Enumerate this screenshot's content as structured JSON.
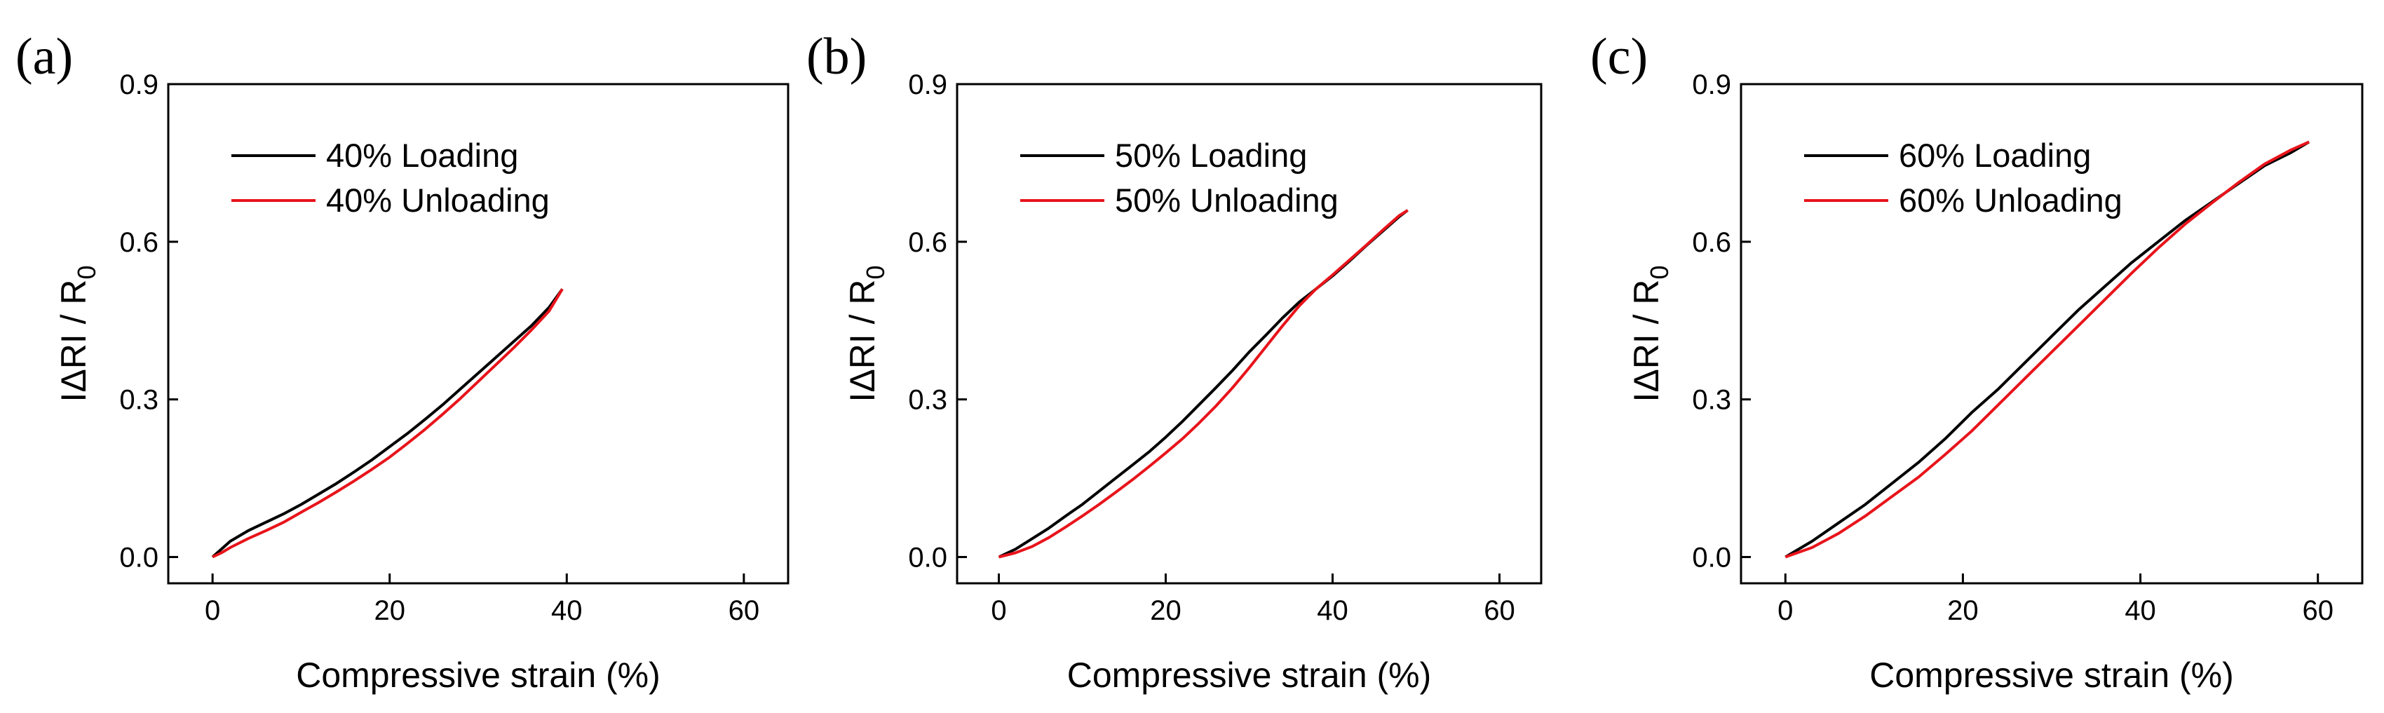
{
  "colors": {
    "loading": "#000000",
    "unloading": "#e8141b",
    "axis": "#000000"
  },
  "chart_data": [
    {
      "type": "line",
      "panel_label": "(a)",
      "xlabel": "Compressive strain (%)",
      "ylabel_main": "IΔRI / R",
      "ylabel_sub": "0",
      "xlim": [
        -5,
        65
      ],
      "ylim": [
        -0.05,
        0.9
      ],
      "xticks": [
        "0",
        "20",
        "40",
        "60"
      ],
      "xtick_values": [
        0,
        20,
        40,
        60
      ],
      "yticks": [
        "0.0",
        "0.3",
        "0.6",
        "0.9"
      ],
      "ytick_values": [
        0.0,
        0.3,
        0.6,
        0.9
      ],
      "legend_position": "top-left",
      "series": [
        {
          "name": "40% Loading",
          "color": "#000000",
          "x": [
            0,
            1,
            2,
            4,
            6,
            8,
            10,
            12,
            14,
            16,
            18,
            20,
            22,
            24,
            26,
            28,
            30,
            32,
            34,
            36,
            38,
            39.5
          ],
          "y": [
            0,
            0.015,
            0.03,
            0.05,
            0.066,
            0.082,
            0.1,
            0.12,
            0.14,
            0.162,
            0.185,
            0.21,
            0.235,
            0.262,
            0.29,
            0.32,
            0.35,
            0.38,
            0.41,
            0.44,
            0.475,
            0.51
          ]
        },
        {
          "name": "40% Unloading",
          "color": "#e8141b",
          "x": [
            0,
            1,
            2,
            4,
            6,
            8,
            10,
            12,
            14,
            16,
            18,
            20,
            22,
            24,
            26,
            28,
            30,
            32,
            34,
            36,
            38,
            39.5
          ],
          "y": [
            0,
            0.008,
            0.018,
            0.035,
            0.05,
            0.066,
            0.085,
            0.104,
            0.124,
            0.145,
            0.167,
            0.19,
            0.216,
            0.243,
            0.272,
            0.302,
            0.334,
            0.366,
            0.398,
            0.432,
            0.468,
            0.51
          ]
        }
      ]
    },
    {
      "type": "line",
      "panel_label": "(b)",
      "xlabel": "Compressive strain (%)",
      "ylabel_main": "IΔRI / R",
      "ylabel_sub": "0",
      "xlim": [
        -5,
        65
      ],
      "ylim": [
        -0.05,
        0.9
      ],
      "xticks": [
        "0",
        "20",
        "40",
        "60"
      ],
      "xtick_values": [
        0,
        20,
        40,
        60
      ],
      "yticks": [
        "0.0",
        "0.3",
        "0.6",
        "0.9"
      ],
      "ytick_values": [
        0.0,
        0.3,
        0.6,
        0.9
      ],
      "legend_position": "top-left",
      "series": [
        {
          "name": "50% Loading",
          "color": "#000000",
          "x": [
            0,
            2,
            4,
            6,
            8,
            10,
            12,
            14,
            16,
            18,
            20,
            22,
            24,
            26,
            28,
            30,
            32,
            34,
            36,
            38,
            40,
            42,
            44,
            46,
            48,
            49
          ],
          "y": [
            0,
            0.015,
            0.035,
            0.055,
            0.078,
            0.1,
            0.125,
            0.15,
            0.175,
            0.2,
            0.228,
            0.258,
            0.29,
            0.322,
            0.355,
            0.39,
            0.422,
            0.455,
            0.485,
            0.51,
            0.535,
            0.563,
            0.592,
            0.62,
            0.648,
            0.66
          ]
        },
        {
          "name": "50% Unloading",
          "color": "#e8141b",
          "x": [
            0,
            2,
            4,
            6,
            8,
            10,
            12,
            14,
            16,
            18,
            20,
            22,
            24,
            26,
            28,
            30,
            32,
            34,
            36,
            38,
            40,
            42,
            44,
            46,
            48,
            49
          ],
          "y": [
            0,
            0.008,
            0.02,
            0.037,
            0.057,
            0.078,
            0.1,
            0.123,
            0.147,
            0.172,
            0.198,
            0.225,
            0.255,
            0.287,
            0.322,
            0.36,
            0.4,
            0.44,
            0.478,
            0.51,
            0.537,
            0.565,
            0.593,
            0.622,
            0.65,
            0.66
          ]
        }
      ]
    },
    {
      "type": "line",
      "panel_label": "(c)",
      "xlabel": "Compressive strain (%)",
      "ylabel_main": "IΔRI / R",
      "ylabel_sub": "0",
      "xlim": [
        -5,
        65
      ],
      "ylim": [
        -0.05,
        0.9
      ],
      "xticks": [
        "0",
        "20",
        "40",
        "60"
      ],
      "xtick_values": [
        0,
        20,
        40,
        60
      ],
      "yticks": [
        "0.0",
        "0.3",
        "0.6",
        "0.9"
      ],
      "ytick_values": [
        0.0,
        0.3,
        0.6,
        0.9
      ],
      "legend_position": "top-left",
      "series": [
        {
          "name": "60% Loading",
          "color": "#000000",
          "x": [
            0,
            3,
            6,
            9,
            12,
            15,
            18,
            21,
            24,
            27,
            30,
            33,
            36,
            39,
            42,
            45,
            48,
            51,
            54,
            57,
            59
          ],
          "y": [
            0,
            0.03,
            0.065,
            0.1,
            0.14,
            0.18,
            0.225,
            0.275,
            0.32,
            0.37,
            0.42,
            0.47,
            0.515,
            0.56,
            0.6,
            0.64,
            0.675,
            0.71,
            0.745,
            0.77,
            0.79
          ]
        },
        {
          "name": "60% Unloading",
          "color": "#e8141b",
          "x": [
            0,
            3,
            6,
            9,
            12,
            15,
            18,
            21,
            24,
            27,
            30,
            33,
            36,
            39,
            42,
            45,
            48,
            51,
            54,
            57,
            59
          ],
          "y": [
            0,
            0.018,
            0.045,
            0.078,
            0.115,
            0.152,
            0.195,
            0.24,
            0.29,
            0.34,
            0.39,
            0.44,
            0.49,
            0.54,
            0.588,
            0.633,
            0.673,
            0.712,
            0.748,
            0.775,
            0.79
          ]
        }
      ]
    }
  ]
}
